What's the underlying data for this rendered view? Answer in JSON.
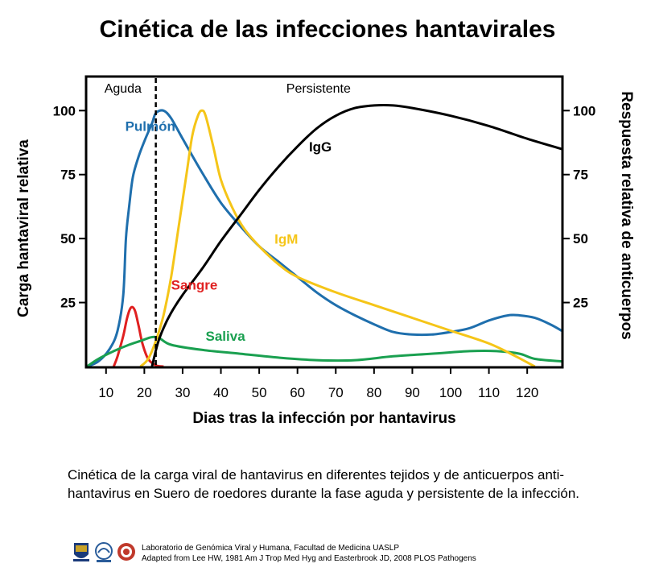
{
  "title": "Cinética de las infecciones hantavirales",
  "caption": "Cinética de la carga viral de hantavirus en diferentes tejidos y de anticuerpos anti-hantavirus en Suero de roedores durante la fase aguda y persistente de la infección.",
  "footer": {
    "line1": "Laboratorio de Genómica Viral y Humana, Facultad de Medicina UASLP",
    "line2": "Adapted from Lee HW, 1981 Am J Trop Med Hyg and Easterbrook JD, 2008 PLOS Pathogens"
  },
  "colors": {
    "pulmon": "#1f6fad",
    "sangre": "#e02020",
    "saliva": "#1aa050",
    "igm": "#f5c518",
    "igg": "#000000"
  },
  "chart_data": {
    "type": "line",
    "xlabel": "Dias tras la infección por hantavirus",
    "ylabel_left": "Carga hantaviral relativa",
    "ylabel_right": "Respuesta relativa de anticuerpos",
    "xlim": [
      5,
      129
    ],
    "ylim": [
      0,
      113
    ],
    "xticks": [
      10,
      20,
      30,
      40,
      50,
      60,
      70,
      80,
      90,
      100,
      110,
      120
    ],
    "yticks": [
      25,
      50,
      75,
      100
    ],
    "phases": [
      {
        "label": "Aguda",
        "x_start": 5,
        "x_end": 23
      },
      {
        "label": "Persistente",
        "x_start": 23,
        "x_end": 129
      }
    ],
    "divider_x": 23,
    "series": [
      {
        "name": "Pulmón",
        "color_key": "pulmon",
        "label_x": 15,
        "label_y": 92,
        "points": [
          [
            5,
            0
          ],
          [
            8,
            2
          ],
          [
            11,
            7
          ],
          [
            13,
            14
          ],
          [
            14.5,
            28
          ],
          [
            15.2,
            50
          ],
          [
            16,
            62
          ],
          [
            17,
            74
          ],
          [
            18.5,
            82
          ],
          [
            20,
            88
          ],
          [
            22,
            95
          ],
          [
            23,
            99
          ],
          [
            25,
            100
          ],
          [
            27,
            97
          ],
          [
            30,
            89
          ],
          [
            35,
            76
          ],
          [
            40,
            64
          ],
          [
            45,
            55
          ],
          [
            50,
            47
          ],
          [
            55,
            41
          ],
          [
            60,
            35
          ],
          [
            65,
            29
          ],
          [
            70,
            24
          ],
          [
            75,
            20
          ],
          [
            80,
            16.5
          ],
          [
            85,
            13.5
          ],
          [
            90,
            12.5
          ],
          [
            95,
            12.5
          ],
          [
            100,
            13.5
          ],
          [
            105,
            15
          ],
          [
            110,
            18
          ],
          [
            115,
            20
          ],
          [
            118,
            20
          ],
          [
            122,
            19
          ],
          [
            126,
            16.5
          ],
          [
            129,
            14
          ]
        ]
      },
      {
        "name": "Sangre",
        "color_key": "sangre",
        "label_x": 27,
        "label_y": 30,
        "points": [
          [
            12,
            0
          ],
          [
            13,
            4
          ],
          [
            14.5,
            12
          ],
          [
            15.5,
            19
          ],
          [
            16.5,
            23
          ],
          [
            17.5,
            22
          ],
          [
            18.5,
            16
          ],
          [
            19.5,
            9
          ],
          [
            21,
            3
          ],
          [
            23,
            0.5
          ],
          [
            25,
            0
          ]
        ]
      },
      {
        "name": "Saliva",
        "color_key": "saliva",
        "label_x": 36,
        "label_y": 10,
        "points": [
          [
            5,
            0
          ],
          [
            8,
            3
          ],
          [
            12,
            6
          ],
          [
            16,
            8.5
          ],
          [
            19,
            10
          ],
          [
            22,
            11.5
          ],
          [
            24,
            11
          ],
          [
            27,
            8.5
          ],
          [
            35,
            6.5
          ],
          [
            45,
            5
          ],
          [
            55,
            3.5
          ],
          [
            65,
            2.5
          ],
          [
            75,
            2.5
          ],
          [
            85,
            4
          ],
          [
            95,
            5
          ],
          [
            105,
            6
          ],
          [
            112,
            6
          ],
          [
            118,
            5
          ],
          [
            122,
            3
          ],
          [
            129,
            2
          ]
        ]
      },
      {
        "name": "IgM",
        "color_key": "igm",
        "label_x": 54,
        "label_y": 48,
        "points": [
          [
            19,
            0
          ],
          [
            21,
            3
          ],
          [
            23,
            10
          ],
          [
            25,
            20
          ],
          [
            27,
            35
          ],
          [
            29,
            55
          ],
          [
            31,
            75
          ],
          [
            32.5,
            90
          ],
          [
            34,
            98
          ],
          [
            35,
            100
          ],
          [
            36,
            98
          ],
          [
            38,
            86
          ],
          [
            40,
            73
          ],
          [
            43,
            62
          ],
          [
            46,
            54
          ],
          [
            50,
            47
          ],
          [
            55,
            40
          ],
          [
            60,
            35
          ],
          [
            70,
            29
          ],
          [
            80,
            24
          ],
          [
            90,
            19
          ],
          [
            100,
            14
          ],
          [
            110,
            9
          ],
          [
            117,
            4
          ],
          [
            122,
            0
          ]
        ]
      },
      {
        "name": "IgG",
        "color_key": "igg",
        "label_x": 63,
        "label_y": 84,
        "points": [
          [
            22,
            0
          ],
          [
            23.5,
            9
          ],
          [
            25,
            15
          ],
          [
            27,
            21
          ],
          [
            30,
            28
          ],
          [
            35,
            38
          ],
          [
            40,
            49
          ],
          [
            45,
            59
          ],
          [
            50,
            69
          ],
          [
            55,
            78
          ],
          [
            60,
            86
          ],
          [
            65,
            93
          ],
          [
            70,
            98
          ],
          [
            75,
            101
          ],
          [
            80,
            102
          ],
          [
            85,
            102
          ],
          [
            90,
            101
          ],
          [
            100,
            98
          ],
          [
            110,
            94
          ],
          [
            120,
            89
          ],
          [
            129,
            85
          ]
        ]
      }
    ]
  }
}
